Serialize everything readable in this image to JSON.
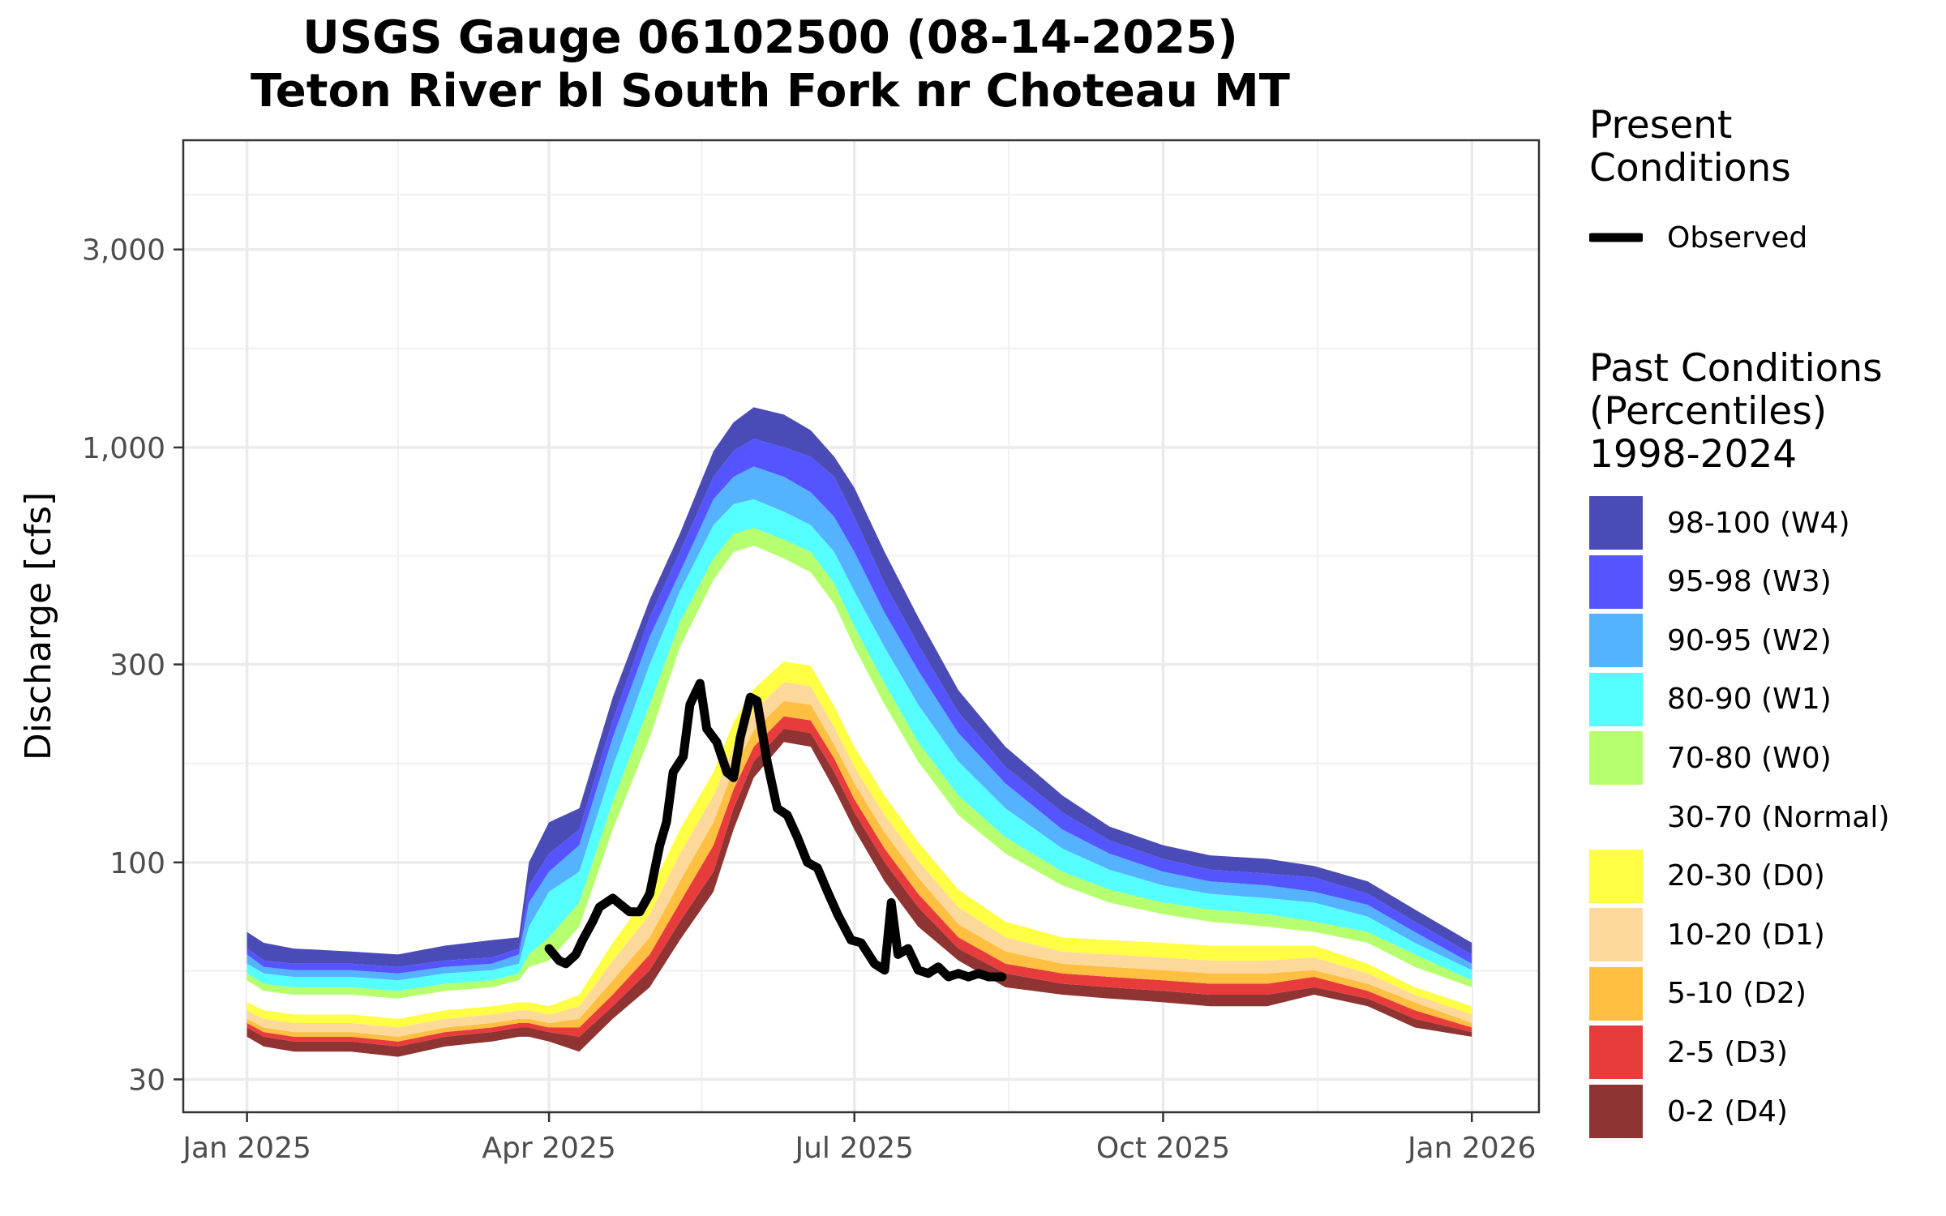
{
  "title": {
    "line1": "USGS Gauge 06102500 (08-14-2025)",
    "line2": "Teton River bl South Fork nr Choteau MT"
  },
  "legend": {
    "present_title": "Present\nConditions",
    "observed_label": "Observed",
    "past_title": "Past Conditions\n(Percentiles)\n1998-2024",
    "items": [
      {
        "label": "98-100 (W4)",
        "color": "#4B4BB8"
      },
      {
        "label": "95-98 (W3)",
        "color": "#5555FF"
      },
      {
        "label": "90-95 (W2)",
        "color": "#55B2FF"
      },
      {
        "label": "80-90 (W1)",
        "color": "#55FFFF"
      },
      {
        "label": "70-80 (W0)",
        "color": "#B6FF6E"
      },
      {
        "label": "30-70 (Normal)",
        "color": "#FFFFFF"
      },
      {
        "label": "20-30 (D0)",
        "color": "#FFFF44"
      },
      {
        "label": "10-20 (D1)",
        "color": "#FCD99B"
      },
      {
        "label": "5-10 (D2)",
        "color": "#FFBF40"
      },
      {
        "label": "2-5 (D3)",
        "color": "#E83C3C"
      },
      {
        "label": "0-2 (D4)",
        "color": "#8F3333"
      }
    ]
  },
  "chart_data": {
    "type": "area",
    "xlabel": "",
    "ylabel": "Discharge [cfs]",
    "y_scale": "log",
    "ylim": [
      25,
      5500
    ],
    "y_ticks": [
      30,
      100,
      300,
      1000,
      3000
    ],
    "y_tick_labels": [
      "30",
      "100",
      "300",
      "1,000",
      "3,000"
    ],
    "x_range": [
      "2024-12-13",
      "2026-01-21"
    ],
    "x_ticks": [
      "2025-01-01",
      "2025-04-01",
      "2025-07-01",
      "2025-10-01",
      "2026-01-01"
    ],
    "x_tick_labels": [
      "Jan 2025",
      "Apr 2025",
      "Jul 2025",
      "Oct 2025",
      "Jan 2026"
    ],
    "grid": true,
    "legend_position": "right",
    "percentile_dates": [
      "2025-01-01",
      "2025-01-06",
      "2025-01-15",
      "2025-02-01",
      "2025-02-15",
      "2025-03-01",
      "2025-03-15",
      "2025-03-23",
      "2025-03-26",
      "2025-04-01",
      "2025-04-10",
      "2025-04-20",
      "2025-05-01",
      "2025-05-10",
      "2025-05-20",
      "2025-05-26",
      "2025-06-01",
      "2025-06-10",
      "2025-06-18",
      "2025-06-25",
      "2025-07-01",
      "2025-07-10",
      "2025-07-20",
      "2025-08-01",
      "2025-08-15",
      "2025-09-01",
      "2025-09-15",
      "2025-10-01",
      "2025-10-15",
      "2025-11-01",
      "2025-11-15",
      "2025-12-01",
      "2025-12-15",
      "2026-01-01"
    ],
    "percentile_bands": [
      {
        "name": "0-2 (D4)",
        "lower": [
          38,
          36,
          35,
          35,
          34,
          36,
          37,
          38,
          38,
          37,
          35,
          42,
          50,
          65,
          85,
          120,
          160,
          195,
          190,
          150,
          120,
          90,
          70,
          58,
          50,
          48,
          47,
          46,
          45,
          45,
          48,
          45,
          40,
          38
        ]
      },
      {
        "name": "2-5 (D3)",
        "lower": [
          40,
          38,
          37,
          37,
          36,
          38,
          39,
          40,
          40,
          39,
          38,
          45,
          55,
          72,
          95,
          135,
          175,
          210,
          205,
          165,
          132,
          100,
          78,
          62,
          54,
          51,
          50,
          49,
          48,
          48,
          50,
          47,
          42,
          39
        ]
      },
      {
        "name": "5-10 (D2)",
        "lower": [
          41,
          39,
          38,
          38,
          37,
          39,
          40,
          41,
          41,
          40,
          40,
          48,
          60,
          80,
          110,
          150,
          190,
          225,
          220,
          178,
          142,
          108,
          84,
          66,
          57,
          54,
          53,
          52,
          51,
          51,
          53,
          49,
          44,
          40
        ]
      },
      {
        "name": "10-20 (D1)",
        "lower": [
          42,
          40,
          39,
          39,
          38,
          40,
          41,
          42,
          42,
          41,
          42,
          52,
          66,
          90,
          125,
          168,
          208,
          245,
          240,
          192,
          155,
          118,
          92,
          71,
          61,
          57,
          56,
          55,
          54,
          54,
          55,
          51,
          46,
          41
        ]
      },
      {
        "name": "20-30 (D0)",
        "lower": [
          44,
          42,
          41,
          41,
          40,
          42,
          43,
          44,
          44,
          43,
          45,
          58,
          75,
          105,
          145,
          190,
          232,
          272,
          266,
          212,
          170,
          130,
          101,
          78,
          66,
          61,
          60,
          59,
          58,
          58,
          59,
          54,
          48,
          43
        ]
      },
      {
        "name": "30-70 (Normal)",
        "lower": [
          46,
          44,
          43,
          43,
          42,
          44,
          45,
          46,
          46,
          45,
          48,
          64,
          85,
          120,
          165,
          218,
          262,
          305,
          298,
          238,
          190,
          145,
          112,
          86,
          72,
          66,
          65,
          64,
          63,
          63,
          63,
          57,
          50,
          45
        ]
      },
      {
        "name": "70-80 (W0)",
        "lower": [
          52,
          49,
          48,
          48,
          47,
          49,
          50,
          52,
          56,
          58,
          70,
          120,
          200,
          330,
          480,
          560,
          580,
          540,
          500,
          420,
          330,
          240,
          175,
          130,
          105,
          88,
          80,
          75,
          72,
          70,
          68,
          64,
          56,
          50
        ]
      },
      {
        "name": "80-90 (W1)",
        "lower": [
          54,
          51,
          50,
          50,
          49,
          51,
          52,
          54,
          60,
          66,
          80,
          140,
          240,
          380,
          540,
          620,
          640,
          600,
          560,
          470,
          370,
          270,
          195,
          145,
          115,
          95,
          86,
          80,
          77,
          75,
          72,
          68,
          60,
          52
        ]
      },
      {
        "name": "90-95 (W2)",
        "lower": [
          57,
          54,
          53,
          53,
          52,
          54,
          55,
          57,
          70,
          85,
          95,
          170,
          300,
          450,
          650,
          730,
          750,
          700,
          650,
          560,
          450,
          330,
          240,
          175,
          135,
          108,
          96,
          88,
          84,
          82,
          80,
          74,
          64,
          55
        ]
      },
      {
        "name": "95-98 (W3)",
        "lower": [
          60,
          56,
          55,
          55,
          54,
          56,
          57,
          60,
          80,
          95,
          110,
          200,
          350,
          500,
          750,
          850,
          900,
          850,
          780,
          680,
          560,
          400,
          290,
          205,
          155,
          120,
          105,
          95,
          90,
          88,
          85,
          79,
          68,
          57
        ]
      },
      {
        "name": "98-100 (W4)",
        "lower": [
          62,
          58,
          57,
          57,
          56,
          58,
          59,
          62,
          88,
          105,
          120,
          220,
          390,
          560,
          850,
          980,
          1050,
          1000,
          950,
          850,
          680,
          470,
          335,
          230,
          170,
          132,
          113,
          102,
          96,
          94,
          92,
          84,
          72,
          60
        ],
        "upper": [
          68,
          64,
          62,
          61,
          60,
          63,
          65,
          66,
          100,
          125,
          135,
          250,
          430,
          620,
          980,
          1150,
          1250,
          1200,
          1100,
          950,
          800,
          560,
          390,
          260,
          190,
          145,
          122,
          110,
          104,
          102,
          98,
          90,
          77,
          64
        ]
      }
    ],
    "series": [
      {
        "name": "Observed",
        "x": [
          "2025-04-01",
          "2025-04-04",
          "2025-04-06",
          "2025-04-09",
          "2025-04-11",
          "2025-04-14",
          "2025-04-16",
          "2025-04-20",
          "2025-04-25",
          "2025-04-28",
          "2025-05-01",
          "2025-05-04",
          "2025-05-06",
          "2025-05-08",
          "2025-05-11",
          "2025-05-13",
          "2025-05-16",
          "2025-05-18",
          "2025-05-21",
          "2025-05-24",
          "2025-05-26",
          "2025-05-28",
          "2025-05-31",
          "2025-06-02",
          "2025-06-05",
          "2025-06-08",
          "2025-06-11",
          "2025-06-14",
          "2025-06-17",
          "2025-06-20",
          "2025-06-23",
          "2025-06-26",
          "2025-06-30",
          "2025-07-03",
          "2025-07-07",
          "2025-07-10",
          "2025-07-12",
          "2025-07-14",
          "2025-07-17",
          "2025-07-20",
          "2025-07-23",
          "2025-07-26",
          "2025-07-29",
          "2025-08-01",
          "2025-08-04",
          "2025-08-07",
          "2025-08-10",
          "2025-08-14"
        ],
        "y": [
          62,
          58,
          57,
          60,
          65,
          72,
          78,
          82,
          76,
          76,
          84,
          110,
          125,
          165,
          180,
          240,
          270,
          210,
          195,
          165,
          160,
          200,
          250,
          245,
          175,
          135,
          130,
          115,
          100,
          97,
          85,
          75,
          65,
          64,
          57,
          55,
          80,
          60,
          62,
          55,
          54,
          56,
          53,
          54,
          53,
          54,
          53,
          53
        ]
      }
    ]
  }
}
